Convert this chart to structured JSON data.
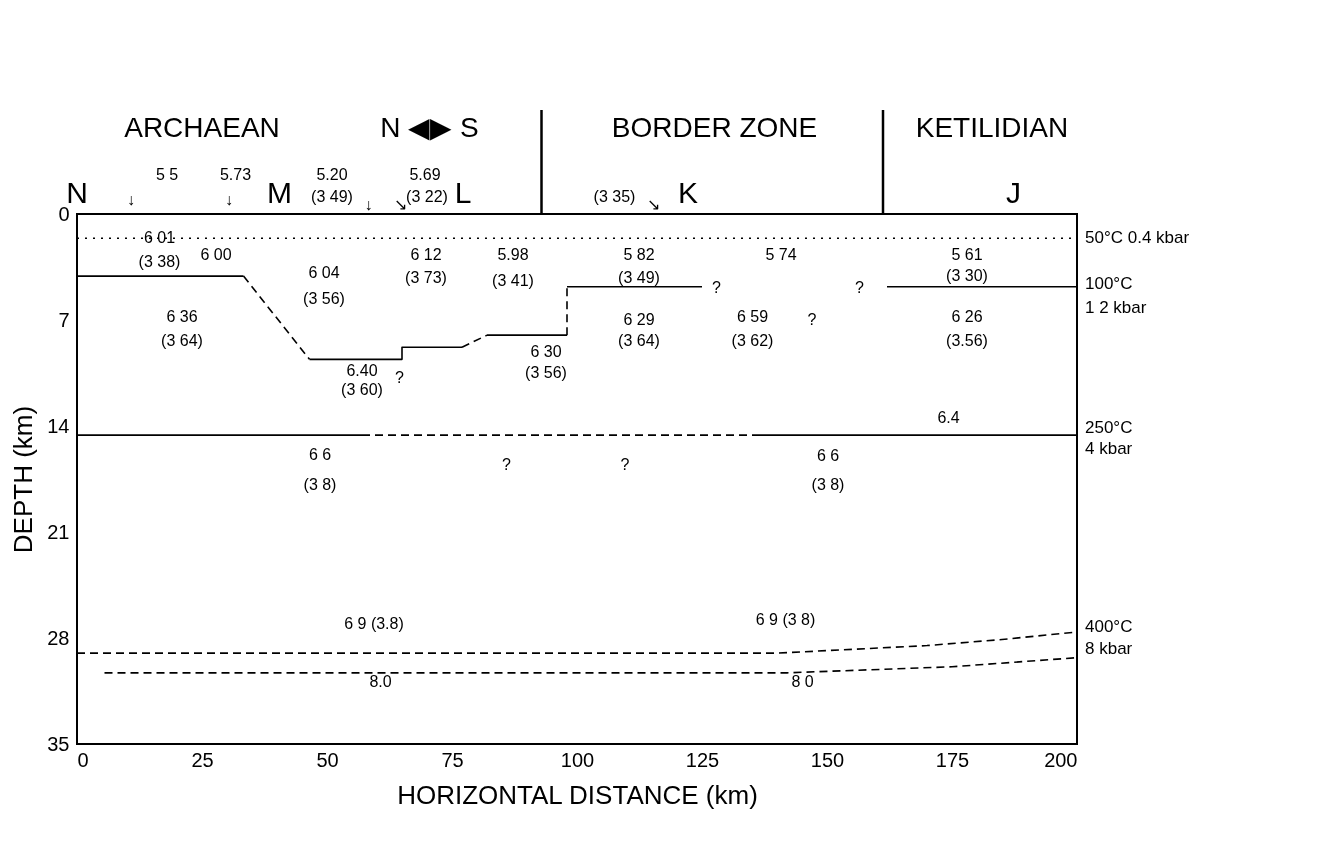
{
  "chart_data": {
    "type": "line",
    "xlabel": "HORIZONTAL DISTANCE (km)",
    "ylabel": "DEPTH (km)",
    "xlim": [
      0,
      200
    ],
    "xticks": [
      0,
      25,
      50,
      75,
      100,
      125,
      150,
      175,
      200
    ],
    "ylim": [
      35,
      0
    ],
    "yticks": [
      0,
      7,
      14,
      21,
      28,
      35
    ],
    "grid": false,
    "marker": "none",
    "series": [
      {
        "color": "#000000",
        "line_style": "dotted",
        "x": [
          0,
          200
        ],
        "values": [
          1.6,
          1.6
        ]
      },
      {
        "color": "#000000",
        "line_style": "solid",
        "x": [
          0,
          33.3
        ],
        "values": [
          4.1,
          4.1
        ]
      },
      {
        "color": "#000000",
        "line_style": "dashed",
        "x": [
          33.3,
          46.5
        ],
        "values": [
          4.1,
          9.6
        ]
      },
      {
        "color": "#000000",
        "line_style": "solid",
        "x": [
          46.5,
          65,
          65,
          77
        ],
        "values": [
          9.6,
          9.6,
          8.8,
          8.8
        ]
      },
      {
        "color": "#000000",
        "line_style": "dashed",
        "x": [
          77,
          82
        ],
        "values": [
          8.8,
          8.0
        ]
      },
      {
        "color": "#000000",
        "line_style": "solid",
        "x": [
          82,
          98
        ],
        "values": [
          8.0,
          8.0
        ]
      },
      {
        "color": "#000000",
        "line_style": "dashed",
        "x": [
          98,
          98
        ],
        "values": [
          8.0,
          4.8
        ]
      },
      {
        "color": "#000000",
        "line_style": "solid",
        "x": [
          98,
          125
        ],
        "values": [
          4.8,
          4.8
        ]
      },
      {
        "color": "#000000",
        "line_style": "solid",
        "x": [
          162,
          200
        ],
        "values": [
          4.8,
          4.8
        ]
      },
      {
        "color": "#000000",
        "line_style": "solid",
        "x": [
          0,
          57
        ],
        "values": [
          14.6,
          14.6
        ]
      },
      {
        "color": "#000000",
        "line_style": "dashed",
        "x": [
          57,
          135
        ],
        "values": [
          14.6,
          14.6
        ]
      },
      {
        "color": "#000000",
        "line_style": "solid",
        "x": [
          135,
          200
        ],
        "values": [
          14.6,
          14.6
        ]
      },
      {
        "color": "#000000",
        "line_style": "dashed",
        "x": [
          0,
          140,
          170,
          185,
          200
        ],
        "values": [
          29.0,
          29.0,
          28.5,
          28.1,
          27.6
        ]
      },
      {
        "color": "#000000",
        "line_style": "dashed",
        "x": [
          5.5,
          142,
          175,
          200
        ],
        "values": [
          30.3,
          30.3,
          29.9,
          29.3
        ]
      }
    ],
    "annotations": [
      "ARCHAEAN",
      "N ◀▶ S",
      "BORDER ZONE",
      "KETILIDIAN",
      "N",
      "M",
      "L",
      "K",
      "J",
      "5 5",
      "5.73",
      "5.20",
      "(3 49)",
      "5.69",
      "(3 22)",
      "(3 35)",
      "↓",
      "↓",
      "↓",
      "↘",
      "↘",
      "6 01",
      "(3 38)",
      "6 00",
      "6 04",
      "(3 56)",
      "6 12",
      "(3 73)",
      "5.98",
      "(3 41)",
      "6 36",
      "(3 64)",
      "6.40",
      "(3 60)",
      "?",
      "6 30",
      "(3 56)",
      "5 82",
      "(3 49)",
      "?",
      "5 74",
      "?",
      "6 29",
      "(3 64)",
      "6 59",
      "(3 62)",
      "?",
      "5 61",
      "(3 30)",
      "6 26",
      "(3.56)",
      "6.4",
      "6 6",
      "(3 8)",
      "?",
      "?",
      "6 6",
      "(3 8)",
      "6 9  (3.8)",
      "6 9  (3 8)",
      "8.0",
      "8 0",
      "50°C 0.4 kbar",
      "100°C",
      "1 2 kbar",
      "250°C",
      "4 kbar",
      "400°C",
      "8 kbar"
    ]
  }
}
